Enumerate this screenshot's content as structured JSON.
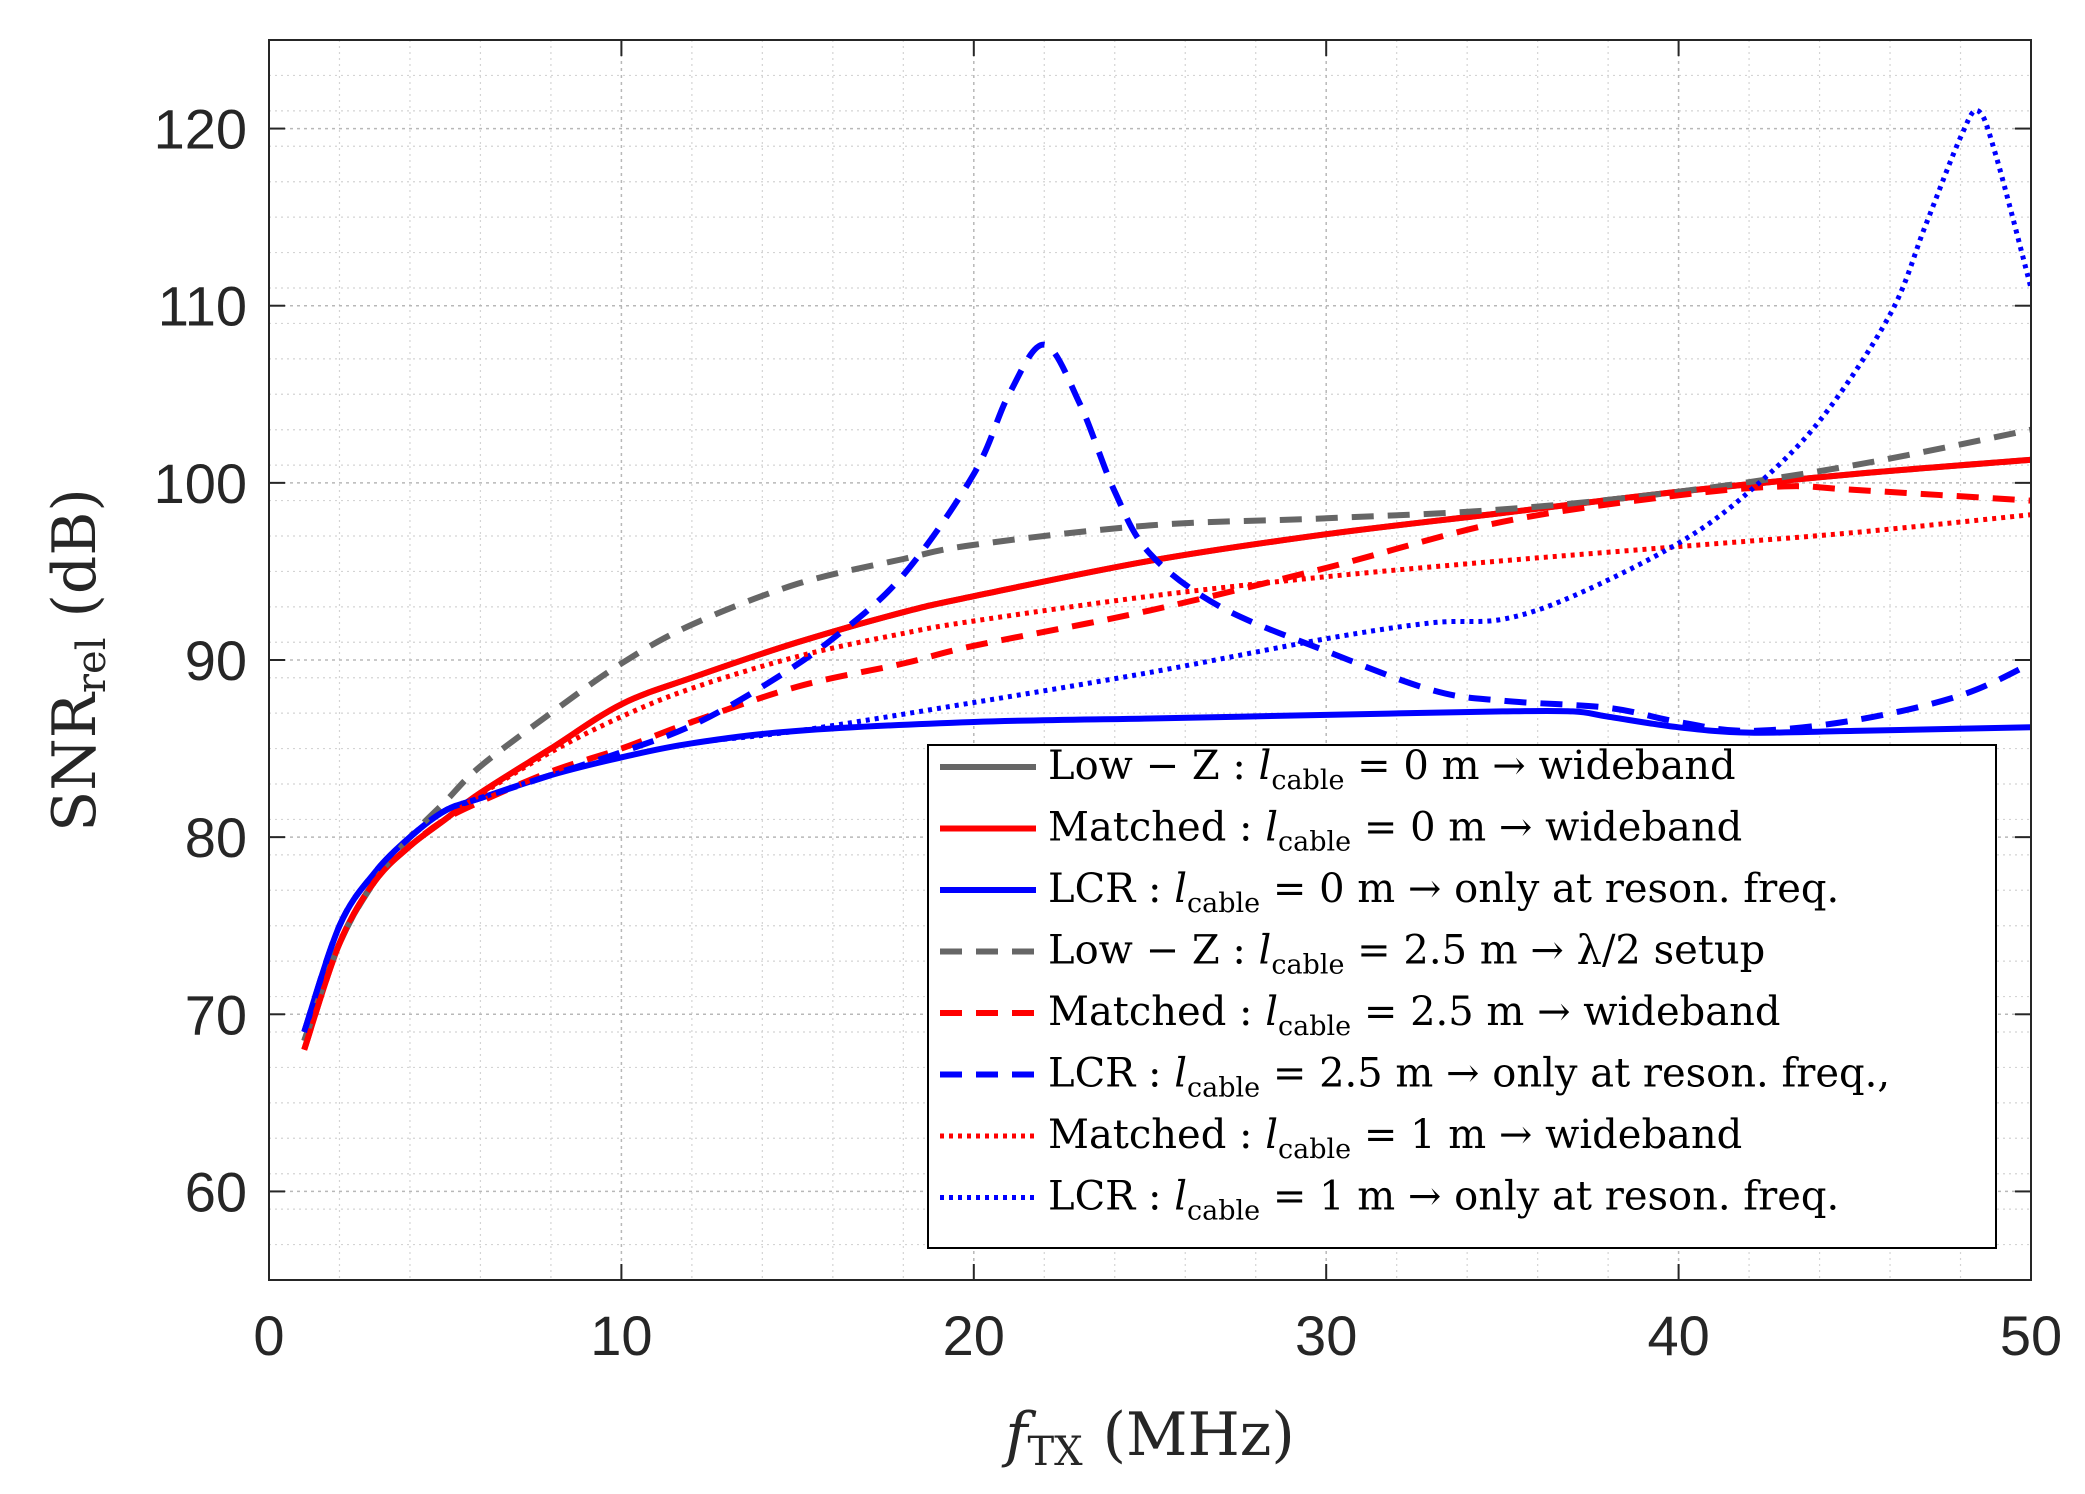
{
  "chart_data": {
    "type": "line",
    "title": "",
    "xlabel": "f_TX (MHz)",
    "xlabel_main": "f",
    "xlabel_sub": "TX",
    "xlabel_rest": "(MHz)",
    "ylabel": "SNR_rel (dB)",
    "ylabel_main": "SNR",
    "ylabel_sub": "rel",
    "ylabel_rest": "(dB)",
    "xlim": [
      0,
      50
    ],
    "ylim": [
      55,
      125
    ],
    "xticks": [
      0,
      10,
      20,
      30,
      40,
      50
    ],
    "yticks": [
      60,
      70,
      80,
      90,
      100,
      110,
      120
    ],
    "grid": true,
    "minor_grid": true,
    "legend_position": "bottom-right",
    "series": [
      {
        "name": "Low − Z : l_cable = 0 m → wideband",
        "legend_parts": [
          "Low − Z : ",
          "l",
          "cable",
          " = 0 m → wideband"
        ],
        "color": "#666666",
        "style": "solid",
        "x": [
          1,
          2,
          3,
          4,
          5,
          6,
          8,
          10,
          12,
          15,
          18,
          20,
          25,
          30,
          35,
          40,
          45,
          50
        ],
        "y": [
          68.5,
          74,
          77.5,
          79.5,
          81,
          82.5,
          85,
          87.5,
          89,
          91,
          92.7,
          93.6,
          95.6,
          97.1,
          98.3,
          99.5,
          100.5,
          101.3
        ]
      },
      {
        "name": "Matched : l_cable = 0 m → wideband",
        "legend_parts": [
          "Matched : ",
          "l",
          "cable",
          " = 0 m → wideband"
        ],
        "color": "#ff0000",
        "style": "solid",
        "x": [
          1,
          2,
          3,
          4,
          5,
          6,
          8,
          10,
          12,
          15,
          18,
          20,
          25,
          30,
          35,
          40,
          45,
          50
        ],
        "y": [
          68,
          74,
          77.5,
          79.5,
          81,
          82.5,
          85,
          87.5,
          89,
          91,
          92.7,
          93.6,
          95.6,
          97.1,
          98.3,
          99.5,
          100.5,
          101.3
        ]
      },
      {
        "name": "LCR : l_cable = 0 m → only at reson. freq.",
        "legend_parts": [
          "LCR : ",
          "l",
          "cable",
          " = 0 m → only at reson. freq."
        ],
        "color": "#0000ff",
        "style": "solid",
        "x": [
          1,
          2,
          3,
          4,
          5,
          6,
          8,
          10,
          12,
          15,
          20,
          25,
          30,
          35,
          37,
          38,
          40,
          42,
          45,
          50
        ],
        "y": [
          69,
          75,
          78,
          80,
          81.5,
          82.2,
          83.5,
          84.5,
          85.3,
          86,
          86.5,
          86.7,
          86.9,
          87.1,
          87.1,
          86.8,
          86.2,
          85.9,
          86,
          86.2
        ]
      },
      {
        "name": "Low − Z : l_cable = 2.5 m → λ/2 setup",
        "legend_parts": [
          "Low − Z : ",
          "l",
          "cable",
          " = 2.5 m → λ/2 setup"
        ],
        "color": "#666666",
        "style": "dashed",
        "x": [
          1,
          2,
          3,
          4,
          5,
          6,
          8,
          10,
          12,
          15,
          18,
          20,
          25,
          30,
          35,
          40,
          45,
          50
        ],
        "y": [
          68.5,
          74,
          77.5,
          80,
          82,
          84,
          87,
          89.8,
          92,
          94.3,
          95.7,
          96.5,
          97.6,
          98,
          98.5,
          99.5,
          101,
          103
        ]
      },
      {
        "name": "Matched : l_cable = 2.5 m → wideband",
        "legend_parts": [
          "Matched : ",
          "l",
          "cable",
          " = 2.5 m → wideband"
        ],
        "color": "#ff0000",
        "style": "dashed",
        "x": [
          1,
          2,
          3,
          4,
          5,
          6,
          8,
          10,
          12,
          15,
          18,
          20,
          25,
          30,
          35,
          40,
          43,
          45,
          50
        ],
        "y": [
          68,
          74,
          77.5,
          79.5,
          81,
          82,
          83.7,
          85,
          86.5,
          88.5,
          89.8,
          90.8,
          92.8,
          95.2,
          97.8,
          99.3,
          99.8,
          99.6,
          99
        ]
      },
      {
        "name": "LCR : l_cable = 2.5 m → only at reson. freq.,",
        "legend_parts": [
          "LCR : ",
          "l",
          "cable",
          " = 2.5 m → only at reson. freq.,"
        ],
        "color": "#0000ff",
        "style": "dashed",
        "x": [
          1,
          2,
          3,
          4,
          5,
          6,
          8,
          10,
          12,
          14,
          16,
          18,
          20,
          21,
          22,
          23,
          24,
          25,
          27,
          30,
          33,
          35,
          38,
          40,
          42,
          45,
          48,
          50
        ],
        "y": [
          69,
          75,
          78,
          80,
          81.5,
          82.2,
          83.5,
          84.8,
          86.3,
          88.5,
          91.2,
          94.8,
          100.5,
          105,
          107.8,
          104.5,
          99.5,
          96,
          93,
          90.5,
          88.3,
          87.7,
          87.3,
          86.5,
          86,
          86.6,
          88,
          89.8
        ]
      },
      {
        "name": "Matched : l_cable = 1 m → wideband",
        "legend_parts": [
          "Matched : ",
          "l",
          "cable",
          " = 1 m → wideband"
        ],
        "color": "#ff0000",
        "style": "dotted",
        "x": [
          1,
          2,
          3,
          4,
          5,
          6,
          8,
          10,
          12,
          15,
          18,
          20,
          25,
          30,
          35,
          40,
          45,
          50
        ],
        "y": [
          68,
          74,
          77.5,
          79.5,
          81,
          82.4,
          84.8,
          86.8,
          88.4,
          90.2,
          91.5,
          92.2,
          93.6,
          94.7,
          95.6,
          96.4,
          97.2,
          98.2
        ]
      },
      {
        "name": "LCR : l_cable = 1 m → only at reson. freq.",
        "legend_parts": [
          "LCR : ",
          "l",
          "cable",
          " = 1 m → only at reson. freq."
        ],
        "color": "#0000ff",
        "style": "dotted",
        "x": [
          1,
          2,
          3,
          4,
          5,
          6,
          8,
          10,
          12,
          15,
          20,
          25,
          30,
          33,
          35,
          37,
          40,
          42,
          44,
          46,
          47,
          48,
          48.5,
          49,
          50
        ],
        "y": [
          69,
          75,
          78,
          80,
          81.5,
          82.2,
          83.5,
          84.5,
          85.3,
          86,
          87.6,
          89.3,
          91.2,
          92.1,
          92.3,
          93.6,
          96.6,
          99.5,
          103.5,
          109.5,
          114.5,
          119.5,
          121,
          118.5,
          111
        ]
      }
    ]
  }
}
